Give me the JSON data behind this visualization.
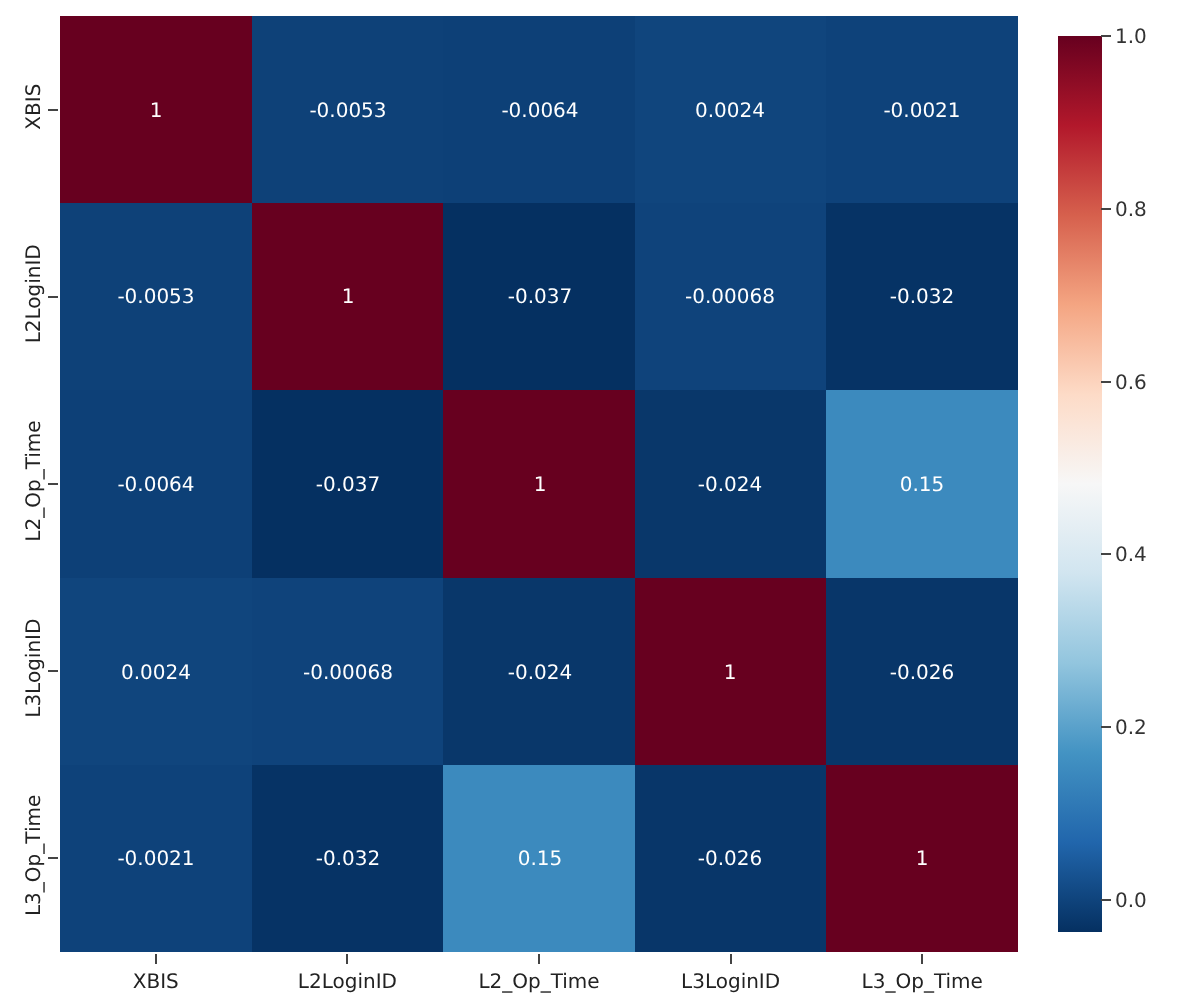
{
  "chart_data": {
    "type": "heatmap",
    "categories": [
      "XBIS",
      "L2LoginID",
      "L2_Op_Time",
      "L3LoginID",
      "L3_Op_Time"
    ],
    "y_categories": [
      "XBIS",
      "L2LoginID",
      "L2_Op_Time",
      "L3LoginID",
      "L3_Op_Time"
    ],
    "cells": [
      [
        1,
        -0.0053,
        -0.0064,
        0.0024,
        -0.0021
      ],
      [
        -0.0053,
        1,
        -0.037,
        -0.00068,
        -0.032
      ],
      [
        -0.0064,
        -0.037,
        1,
        -0.024,
        0.15
      ],
      [
        0.0024,
        -0.00068,
        -0.024,
        1,
        -0.026
      ],
      [
        -0.0021,
        -0.032,
        0.15,
        -0.026,
        1
      ]
    ],
    "data_labels": true,
    "clim": [
      -0.037,
      1
    ],
    "cticks": [
      {
        "value": 0,
        "label": "0.0"
      },
      {
        "value": 0.2,
        "label": "0.2"
      },
      {
        "value": 0.4,
        "label": "0.4"
      },
      {
        "value": 0.6,
        "label": "0.6"
      },
      {
        "value": 0.8,
        "label": "0.8"
      },
      {
        "value": 1,
        "label": "1.0"
      }
    ]
  }
}
